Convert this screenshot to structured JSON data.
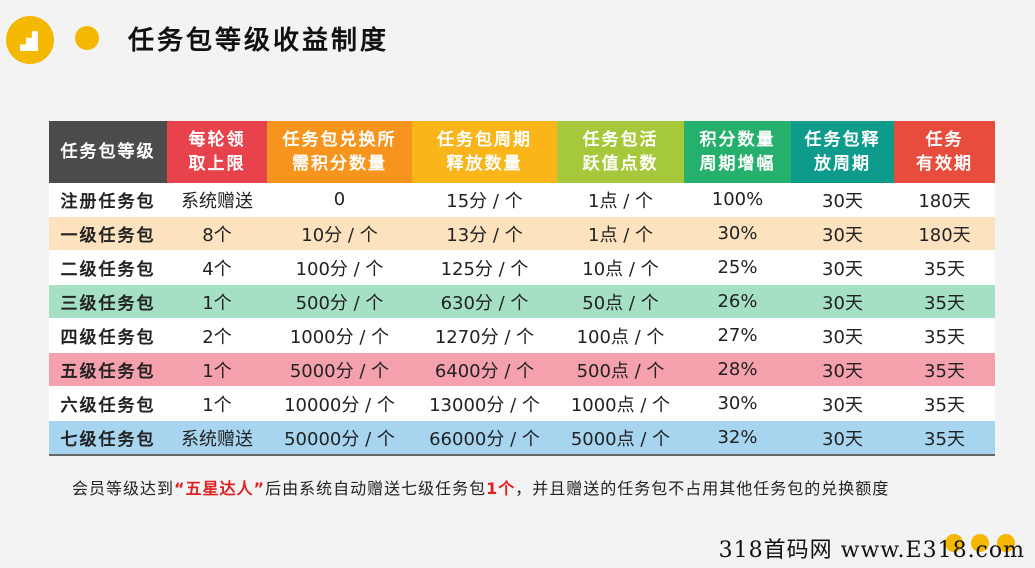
{
  "title": "任务包等级收益制度",
  "headers": [
    [
      "任务包等级"
    ],
    [
      "每轮领",
      "取上限"
    ],
    [
      "任务包兑换所",
      "需积分数量"
    ],
    [
      "任务包周期",
      "释放数量"
    ],
    [
      "任务包活",
      "跃值点数"
    ],
    [
      "积分数量",
      "周期增幅"
    ],
    [
      "任务包释",
      "放周期"
    ],
    [
      "任务",
      "有效期"
    ]
  ],
  "rows": [
    {
      "style": "white",
      "cells": [
        "注册任务包",
        "系统赠送",
        "0",
        "15分 / 个",
        "1点 / 个",
        "100%",
        "30天",
        "180天"
      ]
    },
    {
      "style": "peach",
      "cells": [
        "一级任务包",
        "8个",
        "10分 / 个",
        "13分 / 个",
        "1点 / 个",
        "30%",
        "30天",
        "180天"
      ]
    },
    {
      "style": "white",
      "cells": [
        "二级任务包",
        "4个",
        "100分 / 个",
        "125分 / 个",
        "10点 / 个",
        "25%",
        "30天",
        "35天"
      ]
    },
    {
      "style": "green",
      "cells": [
        "三级任务包",
        "1个",
        "500分 / 个",
        "630分 / 个",
        "50点 / 个",
        "26%",
        "30天",
        "35天"
      ]
    },
    {
      "style": "white",
      "cells": [
        "四级任务包",
        "2个",
        "1000分 / 个",
        "1270分 / 个",
        "100点 / 个",
        "27%",
        "30天",
        "35天"
      ]
    },
    {
      "style": "pink",
      "cells": [
        "五级任务包",
        "1个",
        "5000分 / 个",
        "6400分 / 个",
        "500点 / 个",
        "28%",
        "30天",
        "35天"
      ]
    },
    {
      "style": "white",
      "cells": [
        "六级任务包",
        "1个",
        "10000分 / 个",
        "13000分 / 个",
        "1000点 / 个",
        "30%",
        "30天",
        "35天"
      ]
    },
    {
      "style": "blue",
      "cells": [
        "七级任务包",
        "系统赠送",
        "50000分 / 个",
        "66000分 / 个",
        "5000点 / 个",
        "32%",
        "30天",
        "35天"
      ]
    }
  ],
  "note": {
    "part1": "会员等级达到",
    "highlight1": "“五星达人”",
    "part2": "后由系统自动赠送七级任务包",
    "highlight2": "1个",
    "part3": "，并且赠送的任务包不占用其他任务包的兑换额度"
  },
  "watermark": "318首码网 www.E318.com"
}
